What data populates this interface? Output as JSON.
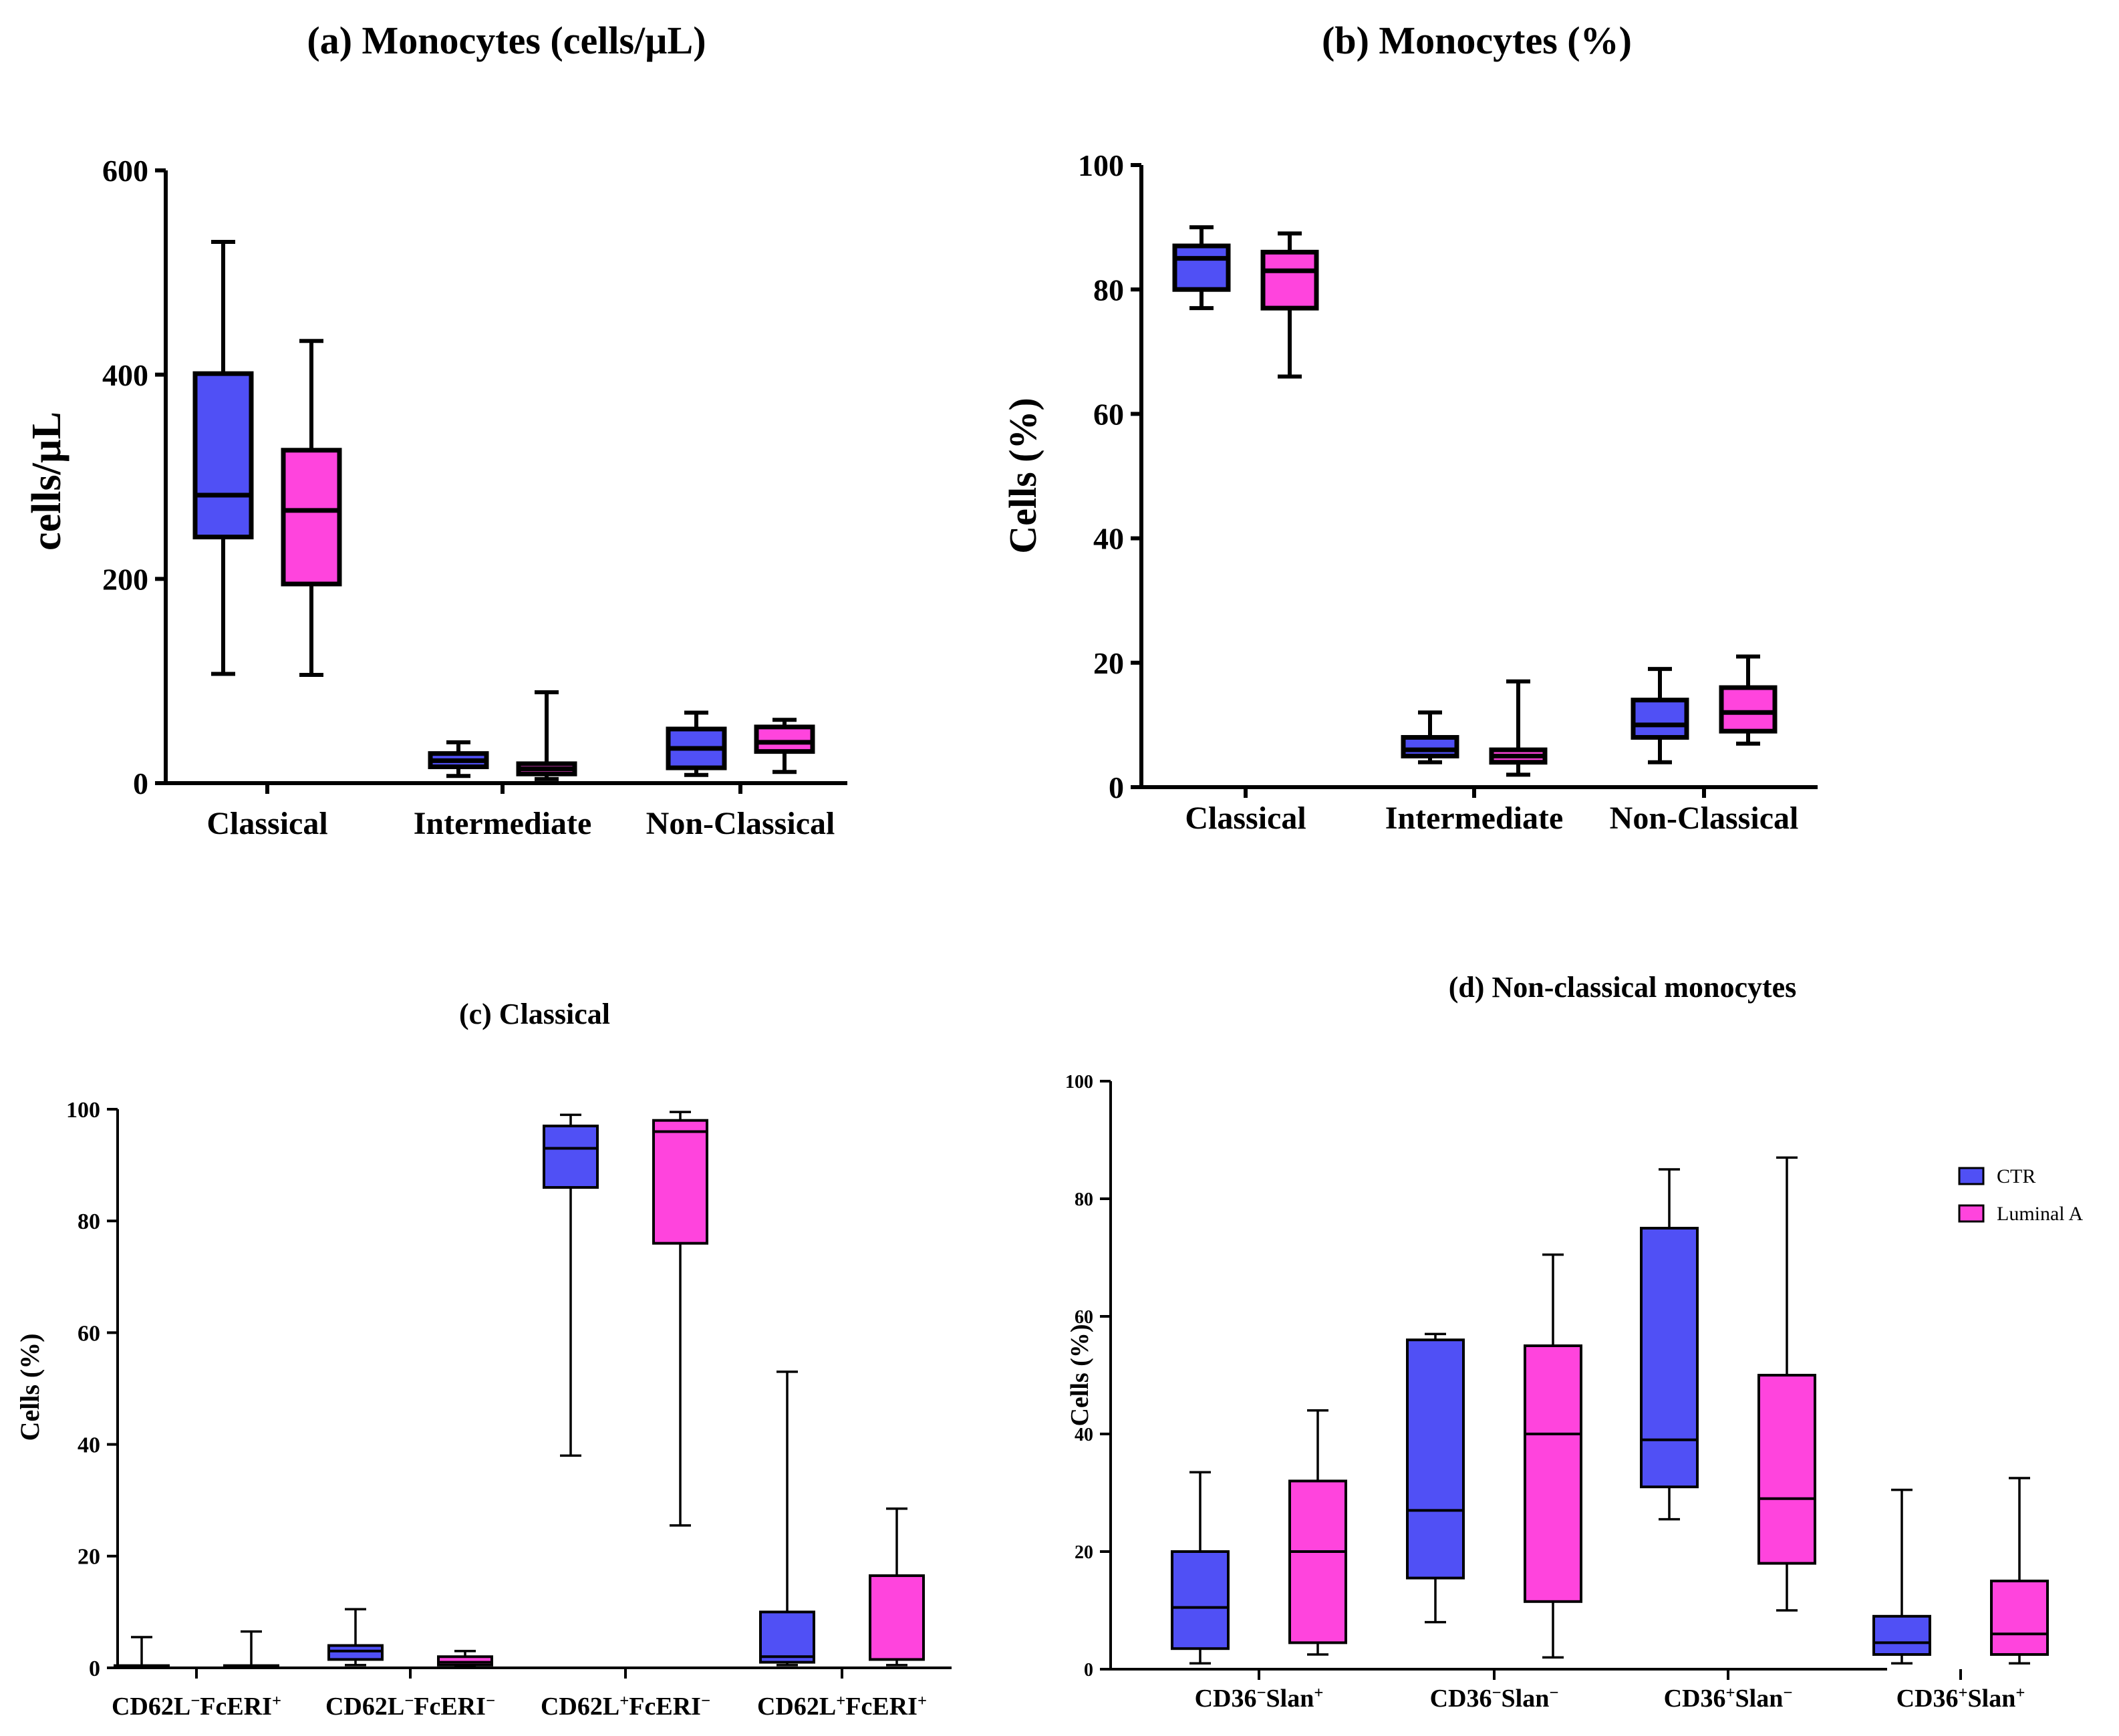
{
  "colors": {
    "ctr": "#5050f5",
    "luminal_a": "#ff44dd",
    "stroke": "#000000"
  },
  "legend": {
    "ctr": "CTR",
    "luminal_a": "Luminal A"
  },
  "chart_data": [
    {
      "id": "a",
      "type": "box",
      "title": "(a) Monocytes (cells/µL)",
      "ylabel": "cells/µL",
      "ylim": [
        0,
        600
      ],
      "yticks": [
        "0",
        "200",
        "400",
        "600"
      ],
      "categories": [
        "Classical",
        "Intermediate",
        "Non-Classical"
      ],
      "series": [
        {
          "name": "CTR",
          "boxes": [
            {
              "min": 107,
              "q1": 241,
              "median": 282,
              "q3": 401,
              "max": 530
            },
            {
              "min": 7,
              "q1": 16,
              "median": 22,
              "q3": 29,
              "max": 40
            },
            {
              "min": 8,
              "q1": 15,
              "median": 34,
              "q3": 53,
              "max": 69
            }
          ]
        },
        {
          "name": "Luminal A",
          "boxes": [
            {
              "min": 106,
              "q1": 195,
              "median": 267,
              "q3": 326,
              "max": 433
            },
            {
              "min": 4,
              "q1": 9,
              "median": 14,
              "q3": 19,
              "max": 89
            },
            {
              "min": 11,
              "q1": 31,
              "median": 40,
              "q3": 55,
              "max": 62
            }
          ]
        }
      ]
    },
    {
      "id": "b",
      "type": "box",
      "title": "(b) Monocytes (%)",
      "ylabel": "Cells (%)",
      "ylim": [
        0,
        100
      ],
      "yticks": [
        "0",
        "20",
        "40",
        "60",
        "80",
        "100"
      ],
      "categories": [
        "Classical",
        "Intermediate",
        "Non-Classical"
      ],
      "series": [
        {
          "name": "CTR",
          "boxes": [
            {
              "min": 77,
              "q1": 80,
              "median": 85,
              "q3": 87,
              "max": 90
            },
            {
              "min": 4,
              "q1": 5,
              "median": 6,
              "q3": 8,
              "max": 12
            },
            {
              "min": 4,
              "q1": 8,
              "median": 10,
              "q3": 14,
              "max": 19
            }
          ]
        },
        {
          "name": "Luminal A",
          "boxes": [
            {
              "min": 66,
              "q1": 77,
              "median": 83,
              "q3": 86,
              "max": 89
            },
            {
              "min": 2,
              "q1": 4,
              "median": 5,
              "q3": 6,
              "max": 17
            },
            {
              "min": 7,
              "q1": 9,
              "median": 12,
              "q3": 16,
              "max": 21
            }
          ]
        }
      ]
    },
    {
      "id": "c",
      "type": "box",
      "title": "(c) Classical",
      "ylabel": "Cells (%)",
      "ylim": [
        0,
        100
      ],
      "yticks": [
        "0",
        "20",
        "40",
        "60",
        "80",
        "100"
      ],
      "categories": [
        {
          "base": "CD62L",
          "sup1": "−",
          "mid": "FcERI",
          "sup2": "+"
        },
        {
          "base": "CD62L",
          "sup1": "−",
          "mid": "FcERI",
          "sup2": "−"
        },
        {
          "base": "CD62L",
          "sup1": "+",
          "mid": "FcERI",
          "sup2": "−"
        },
        {
          "base": "CD62L",
          "sup1": "+",
          "mid": "FcERI",
          "sup2": "+"
        }
      ],
      "series": [
        {
          "name": "CTR",
          "boxes": [
            {
              "min": 0,
              "q1": 0,
              "median": 0,
              "q3": 0.4,
              "max": 5.5
            },
            {
              "min": 0.5,
              "q1": 1.5,
              "median": 3,
              "q3": 4,
              "max": 10.5
            },
            {
              "min": 38,
              "q1": 86,
              "median": 93,
              "q3": 97,
              "max": 99
            },
            {
              "min": 0.5,
              "q1": 1,
              "median": 2,
              "q3": 10,
              "max": 53
            }
          ]
        },
        {
          "name": "Luminal A",
          "boxes": [
            {
              "min": 0,
              "q1": 0,
              "median": 0,
              "q3": 0.4,
              "max": 6.5
            },
            {
              "min": 0.3,
              "q1": 0.5,
              "median": 1,
              "q3": 2,
              "max": 3
            },
            {
              "min": 25.5,
              "q1": 76,
              "median": 96,
              "q3": 98,
              "max": 99.5
            },
            {
              "min": 0.5,
              "q1": 1.5,
              "median": 1.5,
              "q3": 16.5,
              "max": 28.5
            }
          ]
        }
      ]
    },
    {
      "id": "d",
      "type": "box",
      "title": "(d) Non-classical monocytes",
      "ylabel": "Cells (%)",
      "ylim": [
        0,
        100
      ],
      "yticks": [
        "0",
        "20",
        "40",
        "60",
        "80",
        "100"
      ],
      "legend_position": "top-right",
      "categories": [
        {
          "base": "CD36",
          "sup1": "−",
          "mid": "Slan",
          "sup2": "+"
        },
        {
          "base": "CD36",
          "sup1": "−",
          "mid": "Slan",
          "sup2": "−"
        },
        {
          "base": "CD36",
          "sup1": "+",
          "mid": "Slan",
          "sup2": "−"
        },
        {
          "base": "CD36",
          "sup1": "+",
          "mid": "Slan",
          "sup2": "+"
        }
      ],
      "series": [
        {
          "name": "CTR",
          "boxes": [
            {
              "min": 1,
              "q1": 3.5,
              "median": 10.5,
              "q3": 20,
              "max": 33.5
            },
            {
              "min": 8,
              "q1": 15.5,
              "median": 27,
              "q3": 56,
              "max": 57
            },
            {
              "min": 25.5,
              "q1": 31,
              "median": 39,
              "q3": 75,
              "max": 85
            },
            {
              "min": 1,
              "q1": 2.5,
              "median": 4.5,
              "q3": 9,
              "max": 30.5
            }
          ]
        },
        {
          "name": "Luminal A",
          "boxes": [
            {
              "min": 2.5,
              "q1": 4.5,
              "median": 20,
              "q3": 32,
              "max": 44
            },
            {
              "min": 2,
              "q1": 11.5,
              "median": 40,
              "q3": 55,
              "max": 70.5
            },
            {
              "min": 10,
              "q1": 18,
              "median": 29,
              "q3": 50,
              "max": 87
            },
            {
              "min": 1,
              "q1": 2.5,
              "median": 6,
              "q3": 15,
              "max": 32.5
            }
          ]
        }
      ]
    }
  ]
}
